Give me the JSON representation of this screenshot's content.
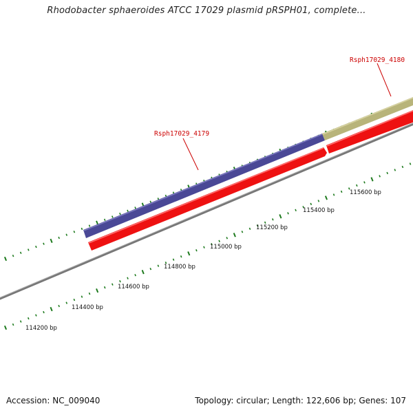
{
  "title": "Rhodobacter sphaeroides ATCC 17029 plasmid pRSPH01, complete...",
  "footer": {
    "accession": "Accession: NC_009040",
    "summary": "Topology: circular; Length: 122,606 bp; Genes: 107"
  },
  "colors": {
    "gene_purple": "#4a4896",
    "gene_olive": "#b8b47a",
    "cds_red": "#ee1111",
    "backbone": "#8a8a8a",
    "ticks": "#1d7a1d",
    "label": "#cc0000"
  },
  "genes": [
    {
      "name": "Rsph17029_4179"
    },
    {
      "name": "Rsph17029_4180"
    }
  ],
  "scale_labels": [
    "114200 bp",
    "114400 bp",
    "114600 bp",
    "114800 bp",
    "115000 bp",
    "115200 bp",
    "115400 bp",
    "115600 bp"
  ]
}
